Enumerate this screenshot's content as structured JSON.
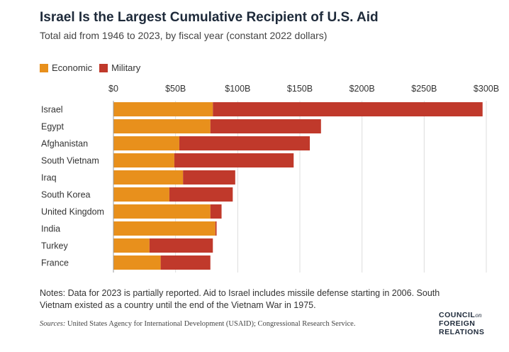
{
  "chart_data": {
    "type": "bar",
    "orientation": "horizontal",
    "stacked": true,
    "title": "Israel Is the Largest Cumulative Recipient of U.S. Aid",
    "subtitle": "Total aid from 1946 to 2023, by fiscal year (constant 2022 dollars)",
    "categories": [
      "Israel",
      "Egypt",
      "Afghanistan",
      "South Vietnam",
      "Iraq",
      "South Korea",
      "United Kingdom",
      "India",
      "Turkey",
      "France"
    ],
    "series": [
      {
        "name": "Economic",
        "color": "#e8901c",
        "values": [
          80,
          78,
          53,
          49,
          56,
          45,
          78,
          82,
          29,
          38
        ]
      },
      {
        "name": "Military",
        "color": "#c0392b",
        "values": [
          217,
          89,
          105,
          96,
          42,
          51,
          9,
          1,
          51,
          40
        ]
      }
    ],
    "xlim": [
      0,
      300
    ],
    "xticks": [
      "$0",
      "$50B",
      "$100B",
      "$150B",
      "$200B",
      "$250B",
      "$300B"
    ],
    "tick_values": [
      0,
      50,
      100,
      150,
      200,
      250,
      300
    ],
    "legend_position": "top-left",
    "grid": true
  },
  "notes": "Notes: Data for 2023 is partially reported. Aid to Israel includes missile defense starting in 2006. South Vietnam existed as a country until the end of the Vietnam War in 1975.",
  "sources_label": "Sources:",
  "sources_text": " United States Agency for International Development (USAID); Congressional Research Service.",
  "logo": {
    "line1": "COUNCIL",
    "on": "on",
    "line2": "FOREIGN",
    "line3": "RELATIONS"
  }
}
